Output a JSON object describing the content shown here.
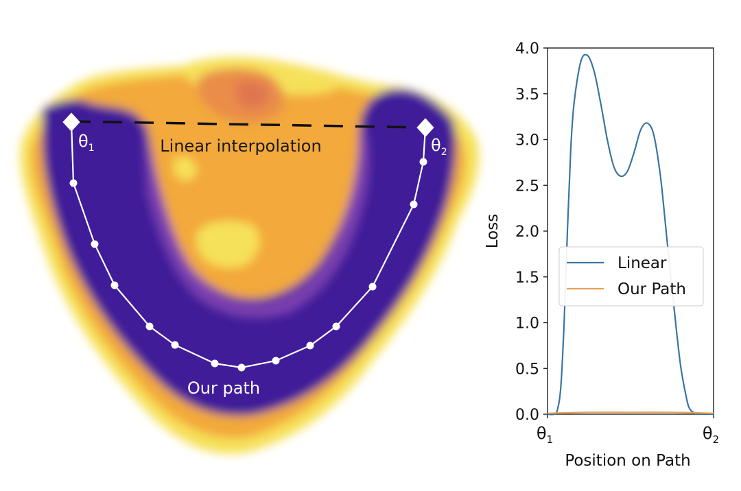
{
  "landscape": {
    "theta1_label": "θ",
    "theta1_sub": "1",
    "theta2_label": "θ",
    "theta2_sub": "2",
    "linear_label": "Linear interpolation",
    "path_label": "Our path",
    "colors": {
      "low": "#3f1a99",
      "mid": "#7b3fb0",
      "orange": "#f3a93a",
      "yellow": "#f6e15a",
      "peak": "#e0764f",
      "path": "#ffffff",
      "dash": "#111111"
    }
  },
  "chart_data": {
    "type": "line",
    "xlabel": "Position on Path",
    "ylabel": "Loss",
    "x_tick_labels": [
      {
        "main": "θ",
        "sub": "1"
      },
      {
        "main": "θ",
        "sub": "2"
      }
    ],
    "xlim": [
      0,
      1
    ],
    "ylim": [
      0,
      4.0
    ],
    "y_ticks": [
      "0.0",
      "0.5",
      "1.0",
      "1.5",
      "2.0",
      "2.5",
      "3.0",
      "3.5",
      "4.0"
    ],
    "grid": false,
    "legend_position": "center-right",
    "series": [
      {
        "name": "Linear",
        "color": "#3a75a0",
        "x": [
          0,
          0.04,
          0.06,
          0.08,
          0.1,
          0.12,
          0.14,
          0.16,
          0.2,
          0.24,
          0.28,
          0.32,
          0.36,
          0.4,
          0.44,
          0.48,
          0.52,
          0.56,
          0.6,
          0.64,
          0.68,
          0.72,
          0.76,
          0.8,
          0.84,
          0.86,
          0.88,
          0.9,
          0.92,
          0.94,
          0.96,
          1.0
        ],
        "y": [
          0,
          0,
          0.05,
          0.3,
          1.0,
          2.0,
          2.9,
          3.4,
          3.85,
          3.92,
          3.75,
          3.4,
          3.0,
          2.7,
          2.6,
          2.65,
          2.85,
          3.1,
          3.18,
          3.05,
          2.6,
          1.9,
          1.2,
          0.55,
          0.15,
          0.05,
          0.02,
          0,
          0,
          0,
          0,
          0
        ]
      },
      {
        "name": "Our Path",
        "color": "#e8a15a",
        "x": [
          0,
          0.25,
          0.5,
          0.75,
          1.0
        ],
        "y": [
          0.01,
          0.02,
          0.02,
          0.02,
          0.01
        ]
      }
    ]
  }
}
